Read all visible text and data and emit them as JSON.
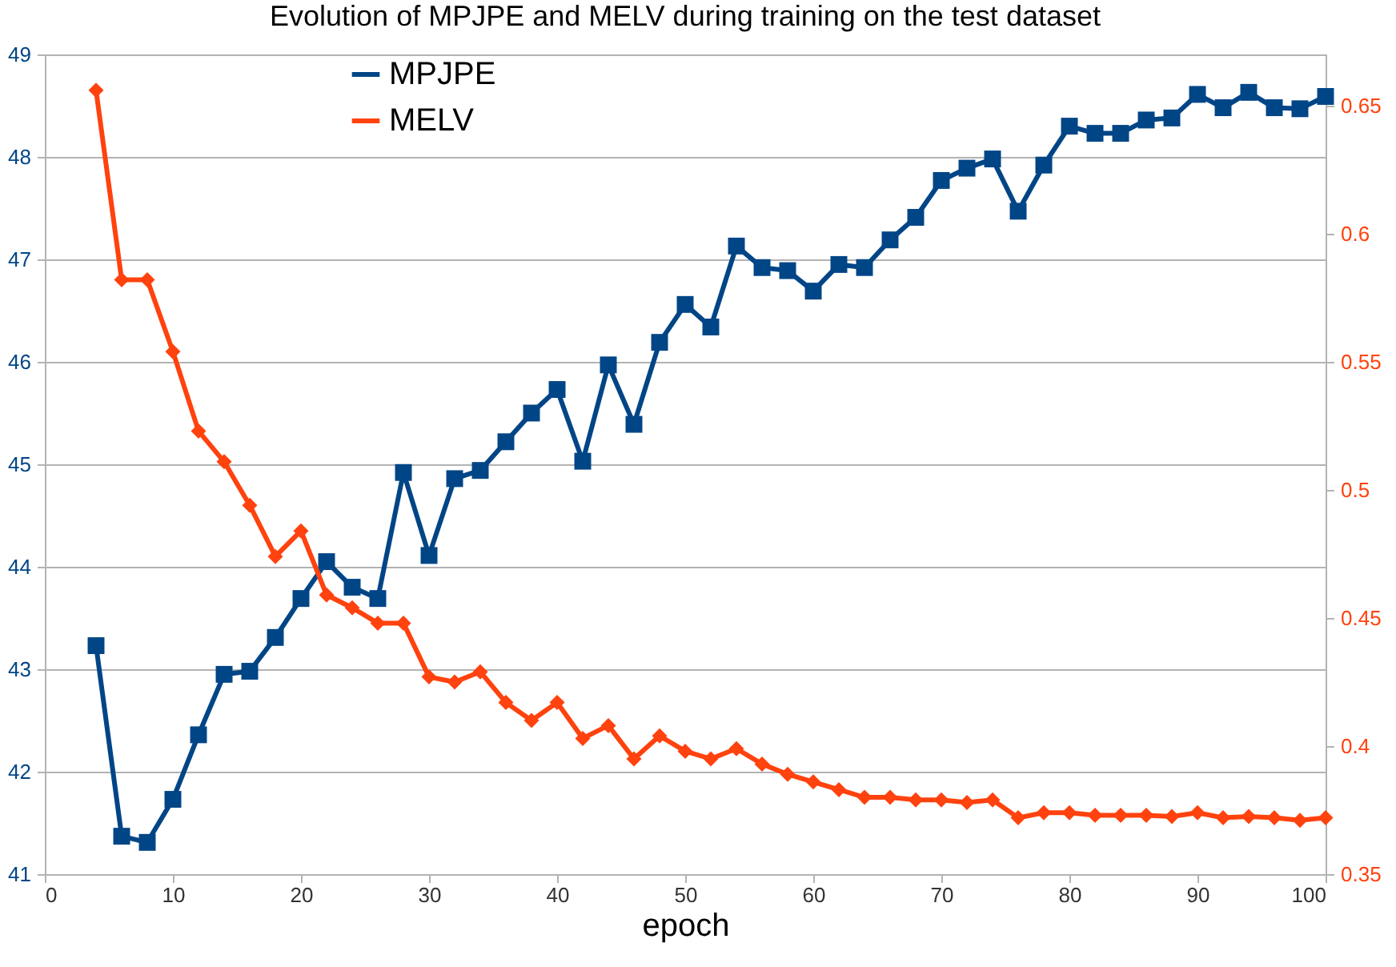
{
  "chart_data": {
    "type": "line",
    "title": "Evolution of MPJPE and MELV during training on the test dataset",
    "xlabel": "epoch",
    "x": [
      4,
      6,
      8,
      10,
      12,
      14,
      16,
      18,
      20,
      22,
      24,
      26,
      28,
      30,
      32,
      34,
      36,
      38,
      40,
      42,
      44,
      46,
      48,
      50,
      52,
      54,
      56,
      58,
      60,
      62,
      64,
      66,
      68,
      70,
      72,
      74,
      76,
      78,
      80,
      82,
      84,
      86,
      88,
      90,
      92,
      94,
      96,
      98,
      100
    ],
    "series": [
      {
        "name": "MPJPE",
        "color": "#004586",
        "marker": "square",
        "values": [
          43.23,
          41.37,
          41.31,
          41.73,
          42.36,
          42.95,
          42.98,
          43.31,
          43.69,
          44.05,
          43.8,
          43.69,
          44.92,
          44.11,
          44.86,
          44.94,
          45.22,
          45.5,
          45.73,
          45.03,
          45.97,
          45.39,
          46.19,
          46.56,
          46.34,
          47.13,
          46.92,
          46.89,
          46.69,
          46.95,
          46.92,
          47.19,
          47.41,
          47.77,
          47.89,
          47.98,
          47.47,
          47.92,
          48.3,
          48.23,
          48.23,
          48.36,
          48.38,
          48.61,
          48.48,
          48.63,
          48.48,
          48.47,
          48.59
        ]
      },
      {
        "name": "MELV",
        "color": "#ff420e",
        "marker": "diamond",
        "axis": "y2",
        "values": [
          0.656,
          0.582,
          0.582,
          0.554,
          0.523,
          0.511,
          0.494,
          0.474,
          0.484,
          0.459,
          0.454,
          0.448,
          0.448,
          0.427,
          0.425,
          0.429,
          0.417,
          0.41,
          0.417,
          0.403,
          0.408,
          0.395,
          0.404,
          0.398,
          0.395,
          0.399,
          0.393,
          0.389,
          0.386,
          0.383,
          0.38,
          0.38,
          0.379,
          0.379,
          0.378,
          0.379,
          0.372,
          0.374,
          0.374,
          0.373,
          0.373,
          0.373,
          0.3725,
          0.374,
          0.372,
          0.3725,
          0.372,
          0.371,
          0.372
        ]
      }
    ],
    "xlim": [
      0,
      100
    ],
    "xticks": [
      0,
      10,
      20,
      30,
      40,
      50,
      60,
      70,
      80,
      90,
      100
    ],
    "ylim": [
      41,
      49
    ],
    "yticks": [
      41,
      42,
      43,
      44,
      45,
      46,
      47,
      48,
      49
    ],
    "y2lim": [
      0.35,
      0.67
    ],
    "y2ticks": [
      0.35,
      0.4,
      0.45,
      0.5,
      0.55,
      0.6,
      0.65
    ],
    "grid": "y",
    "legend": "top left"
  }
}
